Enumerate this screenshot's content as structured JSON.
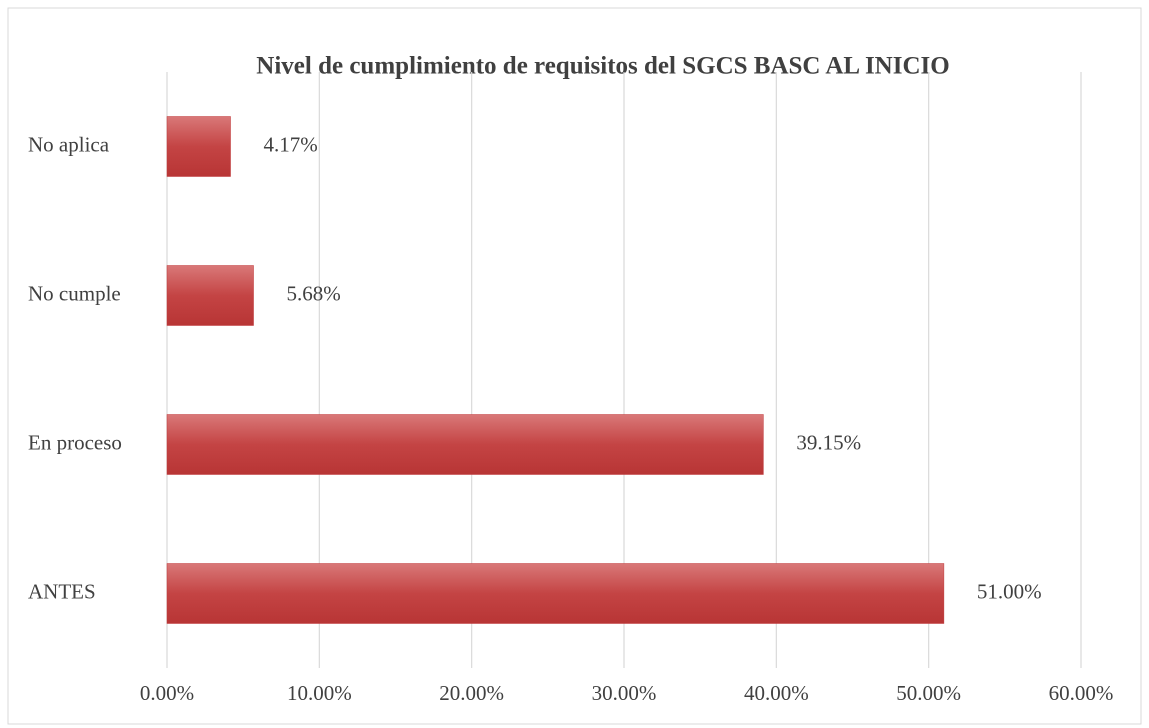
{
  "chart_data": {
    "type": "barh",
    "title": "Nivel de cumplimiento de requisitos del SGCS BASC AL INICIO",
    "categories": [
      "No aplica",
      "No cumple",
      "En proceso",
      "ANTES"
    ],
    "values": [
      4.17,
      5.68,
      39.15,
      51.0
    ],
    "value_labels": [
      "4.17%",
      "5.68%",
      "39.15%",
      "51.00%"
    ],
    "color": "#c0393b",
    "xlim": [
      0,
      60
    ],
    "xticks": [
      {
        "value": 0,
        "label": "0.00%"
      },
      {
        "value": 10,
        "label": "10.00%"
      },
      {
        "value": 20,
        "label": "20.00%"
      },
      {
        "value": 30,
        "label": "30.00%"
      },
      {
        "value": 40,
        "label": "40.00%"
      },
      {
        "value": 50,
        "label": "50.00%"
      },
      {
        "value": 60,
        "label": "60.00%"
      }
    ],
    "grid": true
  }
}
